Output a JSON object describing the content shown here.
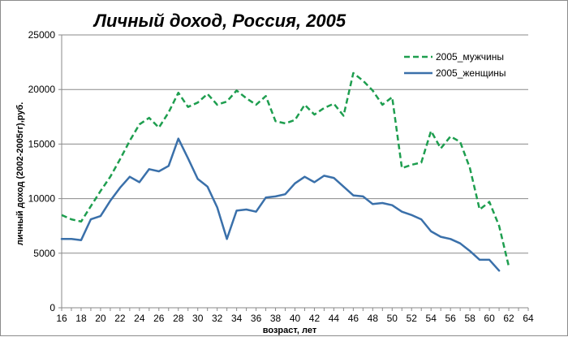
{
  "chart_data": {
    "type": "line",
    "title": "Личный доход, Россия, 2005",
    "xlabel": "возраст, лет",
    "ylabel": "личный доход (2002-2005гг),руб.",
    "xlim": [
      16,
      64
    ],
    "ylim": [
      0,
      25000
    ],
    "x_ticks": [
      16,
      18,
      20,
      22,
      24,
      26,
      28,
      30,
      32,
      34,
      36,
      38,
      40,
      42,
      44,
      46,
      48,
      50,
      52,
      54,
      56,
      58,
      60,
      62,
      64
    ],
    "y_ticks": [
      0,
      5000,
      10000,
      15000,
      20000,
      25000
    ],
    "grid": "horizontal",
    "legend_position": "top-right",
    "series": [
      {
        "name": "2005_мужчины",
        "color": "#1e9e4f",
        "style": "dashed",
        "x": [
          16,
          17,
          18,
          19,
          20,
          21,
          22,
          23,
          24,
          25,
          26,
          27,
          28,
          29,
          30,
          31,
          32,
          33,
          34,
          35,
          36,
          37,
          38,
          39,
          40,
          41,
          42,
          43,
          44,
          45,
          46,
          47,
          48,
          49,
          50,
          51,
          52,
          53,
          54,
          55,
          56,
          57,
          58,
          59,
          60,
          61,
          62
        ],
        "values": [
          8500,
          8100,
          7900,
          9300,
          10700,
          12000,
          13600,
          15300,
          16800,
          17400,
          16500,
          17900,
          19700,
          18400,
          18800,
          19600,
          18600,
          18900,
          19900,
          19200,
          18600,
          19400,
          17100,
          16900,
          17200,
          18600,
          17700,
          18300,
          18700,
          17600,
          21500,
          20800,
          19900,
          18600,
          19300,
          12800,
          13100,
          13300,
          16200,
          14600,
          15700,
          15200,
          12800,
          9000,
          9700,
          7500,
          3800
        ]
      },
      {
        "name": "2005_женщины",
        "color": "#3a70aa",
        "style": "solid",
        "x": [
          16,
          17,
          18,
          19,
          20,
          21,
          22,
          23,
          24,
          25,
          26,
          27,
          28,
          29,
          30,
          31,
          32,
          33,
          34,
          35,
          36,
          37,
          38,
          39,
          40,
          41,
          42,
          43,
          44,
          45,
          46,
          47,
          48,
          49,
          50,
          51,
          52,
          53,
          54,
          55,
          56,
          57,
          58,
          59,
          60,
          61
        ],
        "values": [
          6300,
          6300,
          6200,
          8100,
          8400,
          9800,
          11000,
          12000,
          11500,
          12700,
          12500,
          13000,
          15500,
          13700,
          11800,
          11100,
          9200,
          6300,
          8900,
          9000,
          8800,
          10100,
          10200,
          10400,
          11400,
          12000,
          11500,
          12100,
          11900,
          11100,
          10300,
          10200,
          9500,
          9600,
          9400,
          8800,
          8500,
          8100,
          7000,
          6500,
          6300,
          5900,
          5200,
          4400,
          4400,
          3400
        ]
      }
    ]
  }
}
